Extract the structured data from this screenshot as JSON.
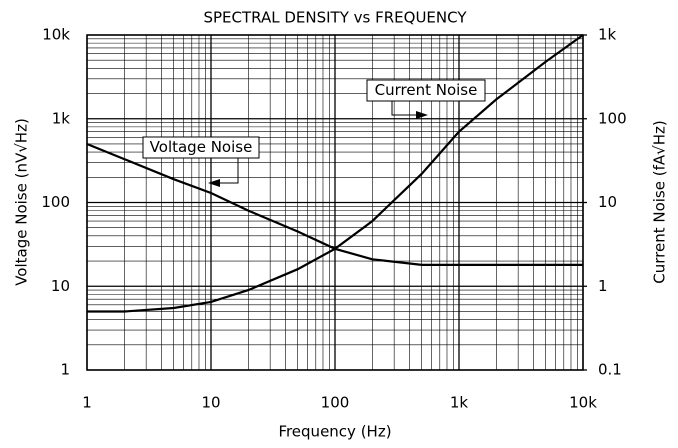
{
  "chart_data": {
    "type": "line",
    "title": "SPECTRAL DENSITY vs FREQUENCY",
    "xlabel": "Frequency (Hz)",
    "ylabel": "Voltage Noise (nV√Hz)",
    "y2label": "Current Noise (fA√Hz)",
    "xscale": "log",
    "yscale": "log",
    "grid": true,
    "x": [
      1,
      2,
      5,
      10,
      20,
      50,
      100,
      200,
      500,
      1000,
      2000,
      5000,
      10000
    ],
    "xlim": [
      1,
      10000
    ],
    "xticks": [
      1,
      10,
      100,
      {
        "value": 1000,
        "label": "1k"
      },
      {
        "value": 10000,
        "label": "10k"
      }
    ],
    "ylim": [
      1,
      10000
    ],
    "yticks": [
      1,
      10,
      100,
      {
        "value": 1000,
        "label": "1k"
      },
      {
        "value": 10000,
        "label": "10k"
      }
    ],
    "y2lim": [
      0.1,
      1000
    ],
    "y2ticks": [
      0.1,
      1,
      10,
      100,
      {
        "value": 1000,
        "label": "1k"
      }
    ],
    "series": [
      {
        "name": "Voltage Noise",
        "color": "#000000",
        "values": [
          500,
          330,
          190,
          130,
          80,
          45,
          28,
          21,
          18,
          18,
          18,
          18,
          18
        ]
      },
      {
        "name": "Current Noise",
        "color": "#000000",
        "axis": "y2",
        "values": [
          0.5,
          0.5,
          0.55,
          0.65,
          0.9,
          1.6,
          2.8,
          6,
          22,
          70,
          170,
          480,
          1000
        ]
      }
    ]
  }
}
